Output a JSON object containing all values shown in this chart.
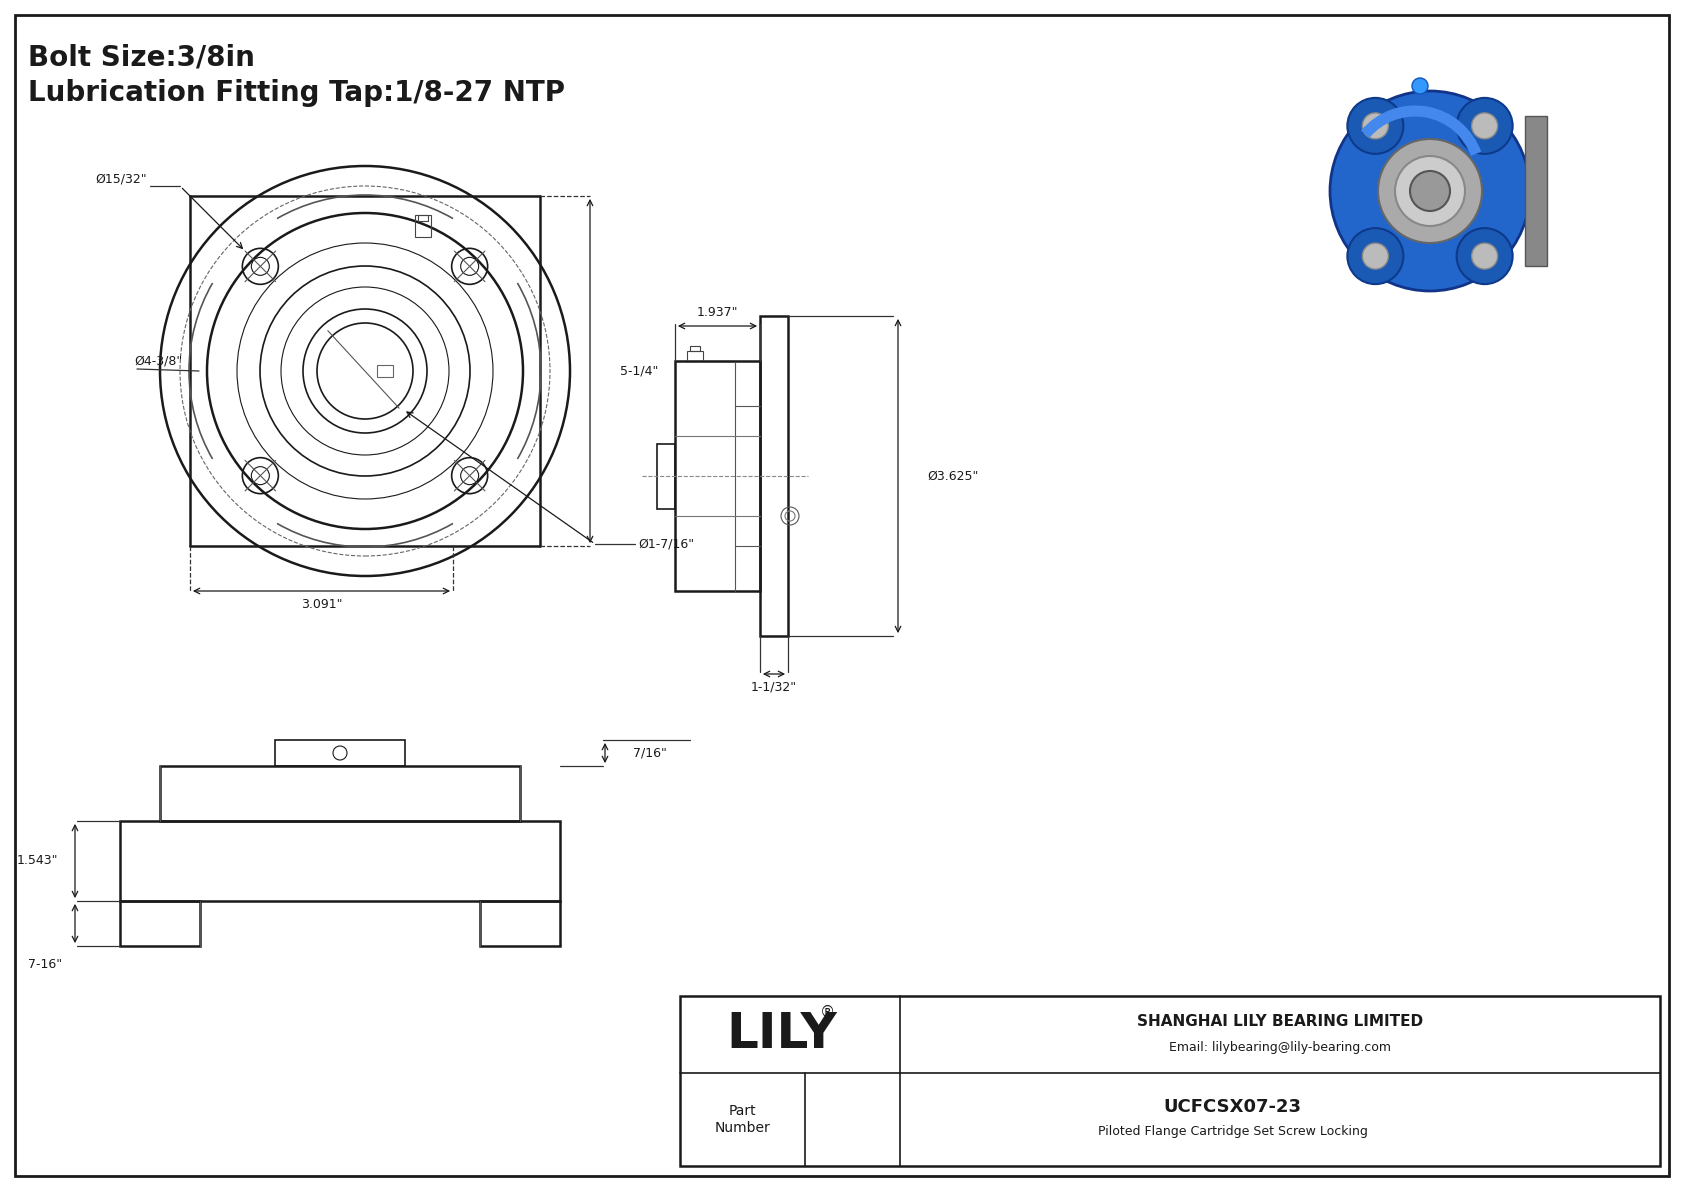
{
  "title_line1": "Bolt Size:3/8in",
  "title_line2": "Lubrication Fitting Tap:1/8-27 NTP",
  "bg_color": "#ffffff",
  "line_color": "#1a1a1a",
  "company": "SHANGHAI LILY BEARING LIMITED",
  "email": "Email: lilybearing@lily-bearing.com",
  "part_number": "UCFCSX07-23",
  "part_desc": "Piloted Flange Cartridge Set Screw Locking",
  "dims": {
    "bolt_hole_dia": "Ø15/32\"",
    "flange_dia": "Ø4-3/8\"",
    "bore_dia": "Ø1-7/16\"",
    "width_3091": "3.091\"",
    "height_514": "5-1/4\"",
    "side_width": "1.937\"",
    "side_depth": "1-1/32\"",
    "side_dia": "Ø3.625\"",
    "bottom_height": "1.543\"",
    "bottom_depth": "7-16\"",
    "top_flange": "7/16\""
  }
}
